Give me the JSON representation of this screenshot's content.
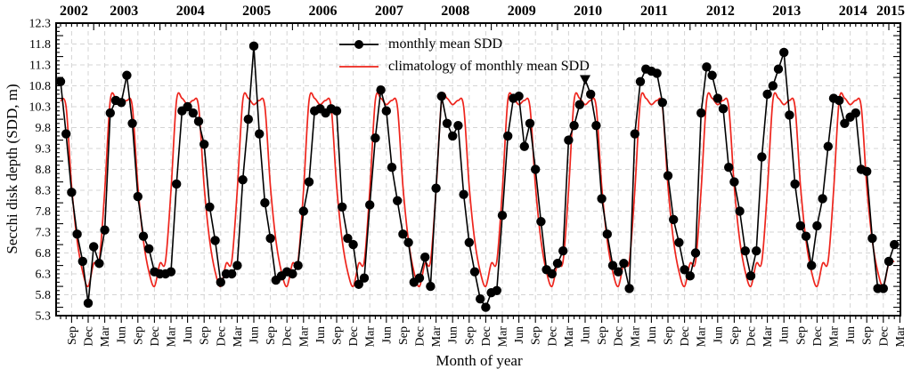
{
  "figure": {
    "y_axis_title": "Secchi disk depth (SDD, m)",
    "x_axis_title": "Month of year"
  },
  "legend": {
    "series1_label": "monthly mean SDD",
    "series2_label": "climatology of monthly mean SDD"
  },
  "colors": {
    "black_series": "#000000",
    "red_series": "#ee241c",
    "gridline": "#d4d4d4",
    "frame": "#000000"
  },
  "chart_data": {
    "type": "line",
    "title": "",
    "xlabel": "Month of year",
    "ylabel": "Secchi disk depth (SDD, m)",
    "ylim": [
      5.3,
      12.3
    ],
    "y_tick_step": 0.5,
    "y_minor_tick_step": 0.1,
    "y_tick_labels": [
      "5.3",
      "5.8",
      "6.3",
      "6.8",
      "7.3",
      "7.8",
      "8.3",
      "8.8",
      "9.3",
      "9.8",
      "10.3",
      "10.8",
      "11.3",
      "11.8",
      "12.3"
    ],
    "top_year_labels": [
      "2002",
      "2003",
      "2004",
      "2005",
      "2006",
      "2007",
      "2008",
      "2009",
      "2010",
      "2011",
      "2012",
      "2013",
      "2014",
      "2015"
    ],
    "bottom_month_label_cycle": [
      "Sep",
      "Dec",
      "Mar",
      "Jun"
    ],
    "x_start": "2002-07",
    "x_end": "2015-03",
    "grid": "dashed, every 3 months vertical and every 0.5 m horizontal",
    "legend_position": "inside top center-left",
    "series": [
      {
        "name": "monthly mean SDD",
        "color": "#000000",
        "marker": "circle",
        "monthly_values": [
          {
            "year": 2002,
            "start_month": 7,
            "values": [
              10.9,
              9.65,
              8.25,
              7.25,
              6.6,
              5.6
            ]
          },
          {
            "year": 2003,
            "start_month": 1,
            "values": [
              6.95,
              6.55,
              7.35,
              10.15,
              10.45,
              10.4,
              11.05,
              9.9,
              8.15,
              7.2,
              6.9,
              6.35
            ]
          },
          {
            "year": 2004,
            "start_month": 1,
            "values": [
              6.3,
              6.3,
              6.35,
              8.45,
              10.2,
              10.3,
              10.15,
              9.95,
              9.4,
              7.9,
              7.1,
              6.1
            ]
          },
          {
            "year": 2005,
            "start_month": 1,
            "values": [
              6.3,
              6.3,
              6.5,
              8.55,
              10.0,
              11.75,
              9.65,
              8.0,
              7.15,
              6.15,
              6.25,
              6.35
            ]
          },
          {
            "year": 2006,
            "start_month": 1,
            "values": [
              6.3,
              6.5,
              7.8,
              8.5,
              10.2,
              10.25,
              10.15,
              10.25,
              10.2,
              7.9,
              7.15,
              7.0
            ]
          },
          {
            "year": 2007,
            "start_month": 1,
            "values": [
              6.05,
              6.2,
              7.95,
              9.55,
              10.7,
              10.2,
              8.85,
              8.05,
              7.25,
              7.05,
              6.1,
              6.2
            ]
          },
          {
            "year": 2008,
            "start_month": 1,
            "values": [
              6.7,
              6.0,
              8.35,
              10.55,
              9.9,
              9.6,
              9.85,
              8.2,
              7.05,
              6.35,
              5.7,
              5.5
            ]
          },
          {
            "year": 2009,
            "start_month": 1,
            "values": [
              5.85,
              5.9,
              7.7,
              9.6,
              10.5,
              10.55,
              9.35,
              9.9,
              8.8,
              7.55,
              6.4,
              6.3
            ]
          },
          {
            "year": 2010,
            "start_month": 1,
            "values": [
              6.55,
              6.85,
              9.5,
              9.85,
              10.35,
              10.95,
              10.6,
              9.85,
              8.1,
              7.25,
              6.5,
              6.35
            ]
          },
          {
            "year": 2011,
            "start_month": 1,
            "values": [
              6.55,
              5.95,
              9.65,
              10.9,
              11.2,
              11.15,
              11.1,
              10.4,
              8.65,
              7.6,
              7.05,
              6.4
            ]
          },
          {
            "year": 2012,
            "start_month": 1,
            "values": [
              6.25,
              6.8,
              10.15,
              11.25,
              11.05,
              10.5,
              10.25,
              8.85,
              8.5,
              7.8,
              6.85,
              6.25
            ]
          },
          {
            "year": 2013,
            "start_month": 1,
            "values": [
              6.85,
              9.1,
              10.6,
              10.8,
              11.2,
              11.6,
              10.1,
              8.45,
              7.45,
              7.2,
              6.5,
              7.45
            ]
          },
          {
            "year": 2014,
            "start_month": 1,
            "values": [
              8.1,
              9.35,
              10.5,
              10.45,
              9.9,
              10.05,
              10.15,
              8.8,
              8.75,
              7.15,
              5.95,
              5.95
            ]
          },
          {
            "year": 2015,
            "start_month": 1,
            "values": [
              6.6,
              7.0
            ]
          }
        ]
      },
      {
        "name": "climatology of monthly mean SDD",
        "color": "#ee241c",
        "marker": "none",
        "climatology_jan_to_dec": [
          6.55,
          6.6,
          8.3,
          10.45,
          10.5,
          10.35,
          10.45,
          10.3,
          8.4,
          7.1,
          6.35,
          6.0
        ]
      }
    ],
    "annotations": [
      {
        "type": "triangle-down-marker",
        "date": "2010-06",
        "value": 10.95
      }
    ]
  }
}
